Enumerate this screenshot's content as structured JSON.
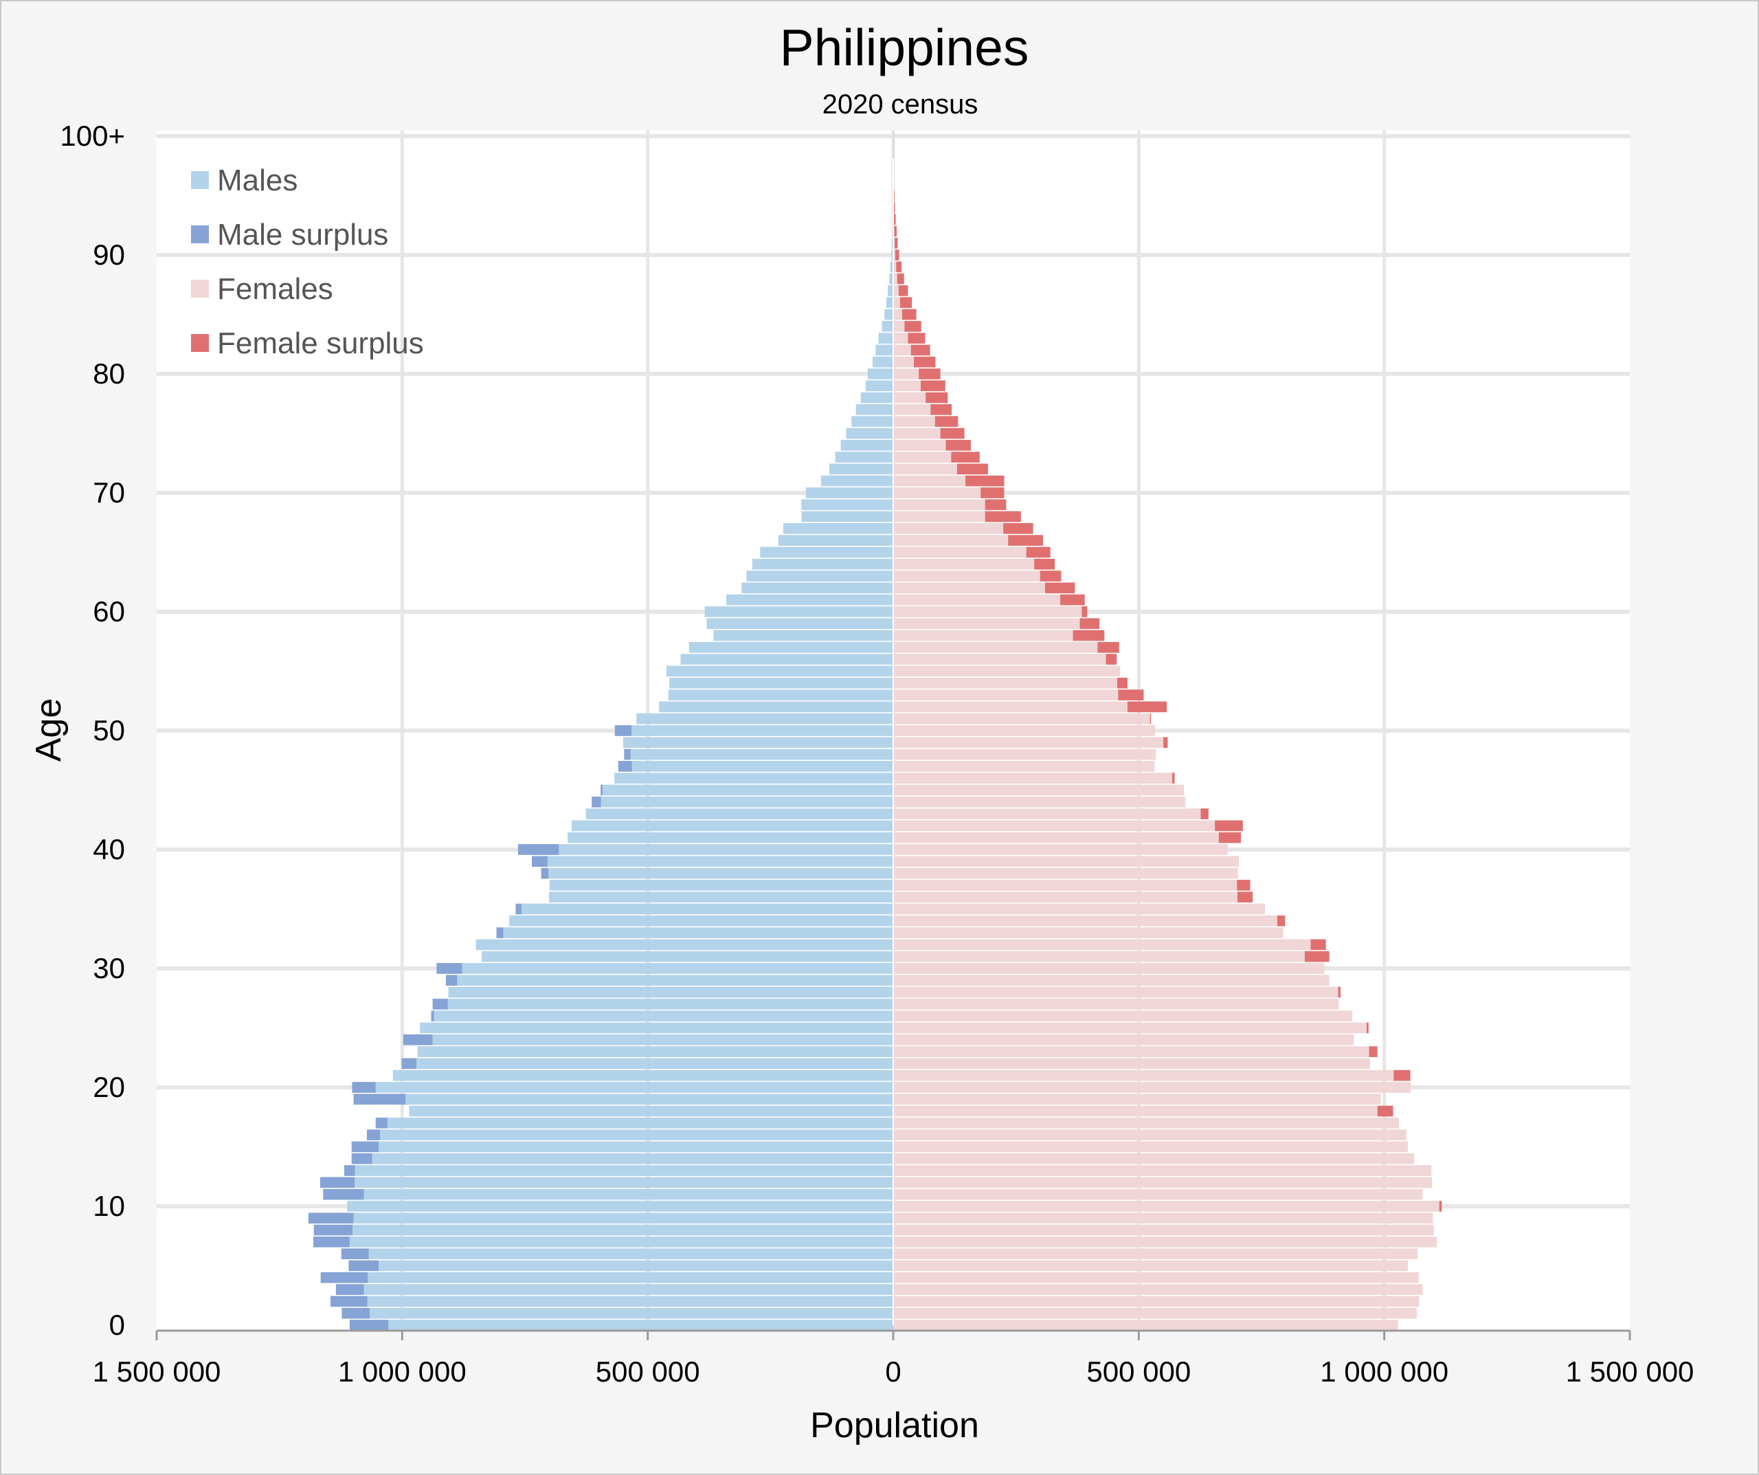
{
  "chart_data": {
    "type": "bar",
    "orientation": "horizontal",
    "title": "Philippines",
    "subtitle": "2020 census",
    "xlabel": "Population",
    "ylabel": "Age",
    "xlim": [
      -1500000,
      1500000
    ],
    "xticks": [
      {
        "value": -1500000,
        "label": "1 500 000"
      },
      {
        "value": -1000000,
        "label": "1 000 000"
      },
      {
        "value": -500000,
        "label": "500 000"
      },
      {
        "value": 0,
        "label": "0"
      },
      {
        "value": 500000,
        "label": "500 000"
      },
      {
        "value": 1000000,
        "label": "1 000 000"
      },
      {
        "value": 1500000,
        "label": "1 500 000"
      }
    ],
    "yticks": [
      {
        "value": 0,
        "label": "0"
      },
      {
        "value": 10,
        "label": "10"
      },
      {
        "value": 20,
        "label": "20"
      },
      {
        "value": 30,
        "label": "30"
      },
      {
        "value": 40,
        "label": "40"
      },
      {
        "value": 50,
        "label": "50"
      },
      {
        "value": 60,
        "label": "60"
      },
      {
        "value": 70,
        "label": "70"
      },
      {
        "value": 80,
        "label": "80"
      },
      {
        "value": 90,
        "label": "90"
      },
      {
        "value": 100,
        "label": "100+"
      }
    ],
    "grid": true,
    "legend_position": "top-left",
    "legend": [
      {
        "name": "Males",
        "color": "#b3d3ea"
      },
      {
        "name": "Male surplus",
        "color": "#85a3d4"
      },
      {
        "name": "Females",
        "color": "#f0d6d6"
      },
      {
        "name": "Female surplus",
        "color": "#e07070"
      }
    ],
    "categories": [
      0,
      1,
      2,
      3,
      4,
      5,
      6,
      7,
      8,
      9,
      10,
      11,
      12,
      13,
      14,
      15,
      16,
      17,
      18,
      19,
      20,
      21,
      22,
      23,
      24,
      25,
      26,
      27,
      28,
      29,
      30,
      31,
      32,
      33,
      34,
      35,
      36,
      37,
      38,
      39,
      40,
      41,
      42,
      43,
      44,
      45,
      46,
      47,
      48,
      49,
      50,
      51,
      52,
      53,
      54,
      55,
      56,
      57,
      58,
      59,
      60,
      61,
      62,
      63,
      64,
      65,
      66,
      67,
      68,
      69,
      70,
      71,
      72,
      73,
      74,
      75,
      76,
      77,
      78,
      79,
      80,
      81,
      82,
      83,
      84,
      85,
      86,
      87,
      88,
      89,
      90,
      91,
      92,
      93,
      94,
      95,
      96,
      97,
      98,
      99,
      100
    ],
    "series": [
      {
        "name": "Males",
        "values": [
          1107000,
          1123000,
          1146000,
          1135000,
          1166000,
          1109000,
          1124000,
          1181000,
          1180000,
          1191000,
          1112000,
          1161000,
          1167000,
          1118000,
          1103000,
          1103000,
          1072000,
          1054000,
          986000,
          1099000,
          1102000,
          1019000,
          1001000,
          969000,
          998000,
          964000,
          941000,
          938000,
          906000,
          911000,
          930000,
          838000,
          850000,
          808000,
          782000,
          769000,
          701000,
          700000,
          717000,
          736000,
          764000,
          663000,
          655000,
          626000,
          614000,
          596000,
          568000,
          560000,
          548000,
          550000,
          567000,
          523000,
          477000,
          458000,
          456000,
          462000,
          433000,
          416000,
          366000,
          380000,
          384000,
          340000,
          309000,
          299000,
          287000,
          271000,
          234000,
          224000,
          187000,
          187000,
          178000,
          147000,
          130000,
          118000,
          107000,
          96000,
          85000,
          76000,
          66000,
          56000,
          52000,
          42000,
          36000,
          30000,
          23000,
          18000,
          14000,
          11000,
          8000,
          6000,
          4000,
          3000,
          2000,
          1500,
          1000,
          700,
          400,
          250,
          150,
          100,
          120
        ]
      },
      {
        "name": "Females",
        "values": [
          1028000,
          1066000,
          1071000,
          1078000,
          1070000,
          1048000,
          1068000,
          1107000,
          1101000,
          1099000,
          1117000,
          1078000,
          1097000,
          1096000,
          1061000,
          1048000,
          1045000,
          1030000,
          1018000,
          993000,
          1054000,
          1053000,
          971000,
          986000,
          938000,
          968000,
          935000,
          907000,
          911000,
          888000,
          878000,
          888000,
          881000,
          794000,
          798000,
          757000,
          732000,
          727000,
          702000,
          704000,
          681000,
          708000,
          712000,
          642000,
          595000,
          592000,
          573000,
          532000,
          535000,
          559000,
          533000,
          525000,
          557000,
          510000,
          477000,
          462000,
          455000,
          460000,
          430000,
          420000,
          395000,
          390000,
          370000,
          342000,
          329000,
          320000,
          305000,
          285000,
          260000,
          230000,
          226000,
          226000,
          193000,
          176000,
          158000,
          145000,
          132000,
          119000,
          111000,
          106000,
          96000,
          86000,
          75000,
          65000,
          57000,
          47000,
          38000,
          30000,
          22000,
          17000,
          12000,
          9000,
          7000,
          5000,
          3500,
          2500,
          1500,
          1000,
          600,
          400,
          400
        ]
      }
    ]
  }
}
